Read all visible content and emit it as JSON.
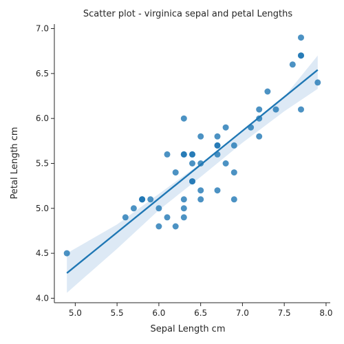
{
  "chart_data": {
    "type": "scatter",
    "title": "Scatter plot - virginica sepal and petal Lengths",
    "xlabel": "Sepal Length cm",
    "ylabel": "Petal Length cm",
    "xlim": [
      4.75,
      8.05
    ],
    "ylim": [
      3.95,
      7.05
    ],
    "xticks": [
      5.0,
      5.5,
      6.0,
      6.5,
      7.0,
      7.5,
      8.0
    ],
    "xtick_labels": [
      "5.0",
      "5.5",
      "6.0",
      "6.5",
      "7.0",
      "7.5",
      "8.0"
    ],
    "yticks": [
      4.0,
      4.5,
      5.0,
      5.5,
      6.0,
      6.5,
      7.0
    ],
    "ytick_labels": [
      "4.0",
      "4.5",
      "5.0",
      "5.5",
      "6.0",
      "6.5",
      "7.0"
    ],
    "grid": false,
    "point_color": "#1f77b4",
    "line_color": "#1f77b4",
    "band_color": "#c6dbef",
    "regression": {
      "x_range": [
        4.9,
        7.9
      ],
      "y_range": [
        4.28,
        6.54
      ]
    },
    "confidence_band": {
      "x": [
        4.9,
        5.5,
        6.0,
        6.5,
        7.0,
        7.5,
        7.9
      ],
      "lower": [
        4.06,
        4.55,
        4.98,
        5.35,
        5.73,
        6.08,
        6.33
      ],
      "upper": [
        4.5,
        4.82,
        5.16,
        5.5,
        5.85,
        6.24,
        6.7
      ]
    },
    "points": [
      {
        "x": 6.3,
        "y": 6.0
      },
      {
        "x": 5.8,
        "y": 5.1
      },
      {
        "x": 7.1,
        "y": 5.9
      },
      {
        "x": 6.3,
        "y": 5.6
      },
      {
        "x": 6.5,
        "y": 5.8
      },
      {
        "x": 7.6,
        "y": 6.6
      },
      {
        "x": 4.9,
        "y": 4.5
      },
      {
        "x": 7.3,
        "y": 6.3
      },
      {
        "x": 6.7,
        "y": 5.8
      },
      {
        "x": 7.2,
        "y": 6.1
      },
      {
        "x": 6.5,
        "y": 5.1
      },
      {
        "x": 6.4,
        "y": 5.3
      },
      {
        "x": 6.8,
        "y": 5.5
      },
      {
        "x": 5.7,
        "y": 5.0
      },
      {
        "x": 5.8,
        "y": 5.1
      },
      {
        "x": 6.4,
        "y": 5.3
      },
      {
        "x": 6.5,
        "y": 5.5
      },
      {
        "x": 7.7,
        "y": 6.7
      },
      {
        "x": 7.7,
        "y": 6.9
      },
      {
        "x": 6.0,
        "y": 5.0
      },
      {
        "x": 6.9,
        "y": 5.7
      },
      {
        "x": 5.6,
        "y": 4.9
      },
      {
        "x": 7.7,
        "y": 6.7
      },
      {
        "x": 6.3,
        "y": 4.9
      },
      {
        "x": 6.7,
        "y": 5.7
      },
      {
        "x": 7.2,
        "y": 6.0
      },
      {
        "x": 6.2,
        "y": 4.8
      },
      {
        "x": 6.1,
        "y": 4.9
      },
      {
        "x": 6.4,
        "y": 5.6
      },
      {
        "x": 7.2,
        "y": 5.8
      },
      {
        "x": 7.4,
        "y": 6.1
      },
      {
        "x": 7.9,
        "y": 6.4
      },
      {
        "x": 6.4,
        "y": 5.6
      },
      {
        "x": 6.3,
        "y": 5.1
      },
      {
        "x": 6.1,
        "y": 5.6
      },
      {
        "x": 7.7,
        "y": 6.1
      },
      {
        "x": 6.3,
        "y": 5.6
      },
      {
        "x": 6.4,
        "y": 5.5
      },
      {
        "x": 6.0,
        "y": 4.8
      },
      {
        "x": 6.9,
        "y": 5.4
      },
      {
        "x": 6.7,
        "y": 5.6
      },
      {
        "x": 6.9,
        "y": 5.1
      },
      {
        "x": 5.8,
        "y": 5.1
      },
      {
        "x": 6.8,
        "y": 5.9
      },
      {
        "x": 6.7,
        "y": 5.7
      },
      {
        "x": 6.7,
        "y": 5.2
      },
      {
        "x": 6.3,
        "y": 5.0
      },
      {
        "x": 6.5,
        "y": 5.2
      },
      {
        "x": 6.2,
        "y": 5.4
      },
      {
        "x": 5.9,
        "y": 5.1
      }
    ]
  }
}
